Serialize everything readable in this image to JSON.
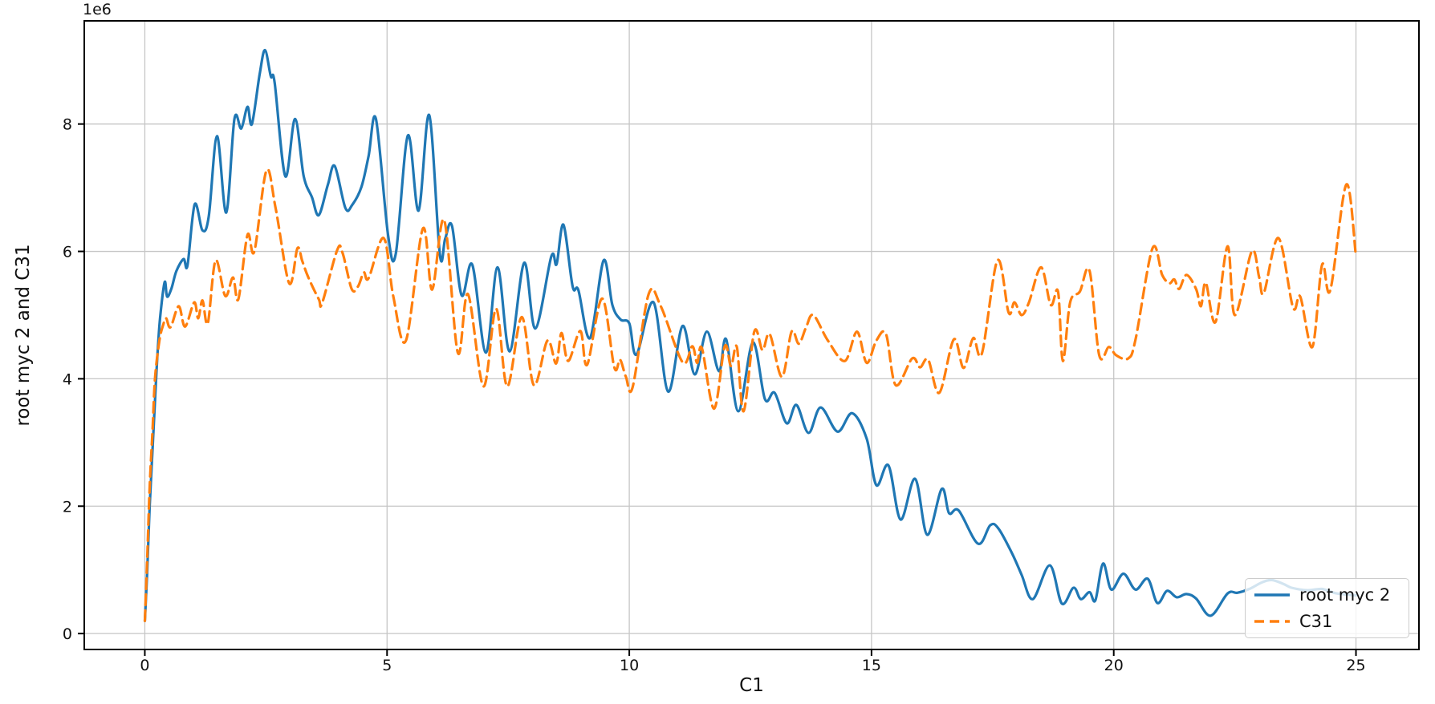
{
  "figure": {
    "background_color": "#ffffff",
    "text_color": "#111111",
    "spine_color": "#000000",
    "grid_color": "#c6c6c6"
  },
  "x_axis": {
    "label": "C1",
    "tick_labels": [
      "0",
      "5",
      "10",
      "15",
      "20",
      "25"
    ]
  },
  "y_axis": {
    "label": "root myc 2 and C31",
    "offset_text": "1e6",
    "tick_labels": [
      "0",
      "2",
      "4",
      "6",
      "8"
    ]
  },
  "legend": {
    "entries": [
      {
        "label": "root myc 2",
        "line_style": "solid",
        "color": "#1f77b4",
        "sample_icon": "solid-line-icon"
      },
      {
        "label": "C31",
        "line_style": "dashed",
        "color": "#ff7f0e",
        "sample_icon": "dashed-line-icon"
      }
    ]
  },
  "chart_data": {
    "type": "line",
    "title": "",
    "xlabel": "C1",
    "ylabel": "root myc 2 and C31",
    "y_offset_text": "1e6",
    "y_unit": "1e6 (values below are in millions)",
    "xlim": [
      -1.25,
      26.3
    ],
    "ylim_millions": [
      -0.25,
      9.62
    ],
    "x_ticks": [
      0,
      5,
      10,
      15,
      20,
      25
    ],
    "y_ticks_millions": [
      0,
      2,
      4,
      6,
      8
    ],
    "grid": true,
    "legend_position": "lower right",
    "grid_color": "#c6c6c6",
    "series": [
      {
        "name": "root myc 2",
        "color": "#1f77b4",
        "style": "solid",
        "points": [
          [
            0,
            0.2
          ],
          [
            0.05,
            1.0
          ],
          [
            0.1,
            2.0
          ],
          [
            0.16,
            2.9
          ],
          [
            0.22,
            3.8
          ],
          [
            0.27,
            4.5
          ],
          [
            0.32,
            5.0
          ],
          [
            0.41,
            5.52
          ],
          [
            0.46,
            5.29
          ],
          [
            0.55,
            5.42
          ],
          [
            0.65,
            5.69
          ],
          [
            0.8,
            5.88
          ],
          [
            0.88,
            5.78
          ],
          [
            1.03,
            6.74
          ],
          [
            1.19,
            6.33
          ],
          [
            1.32,
            6.55
          ],
          [
            1.49,
            7.81
          ],
          [
            1.68,
            6.61
          ],
          [
            1.85,
            8.08
          ],
          [
            1.99,
            7.93
          ],
          [
            2.12,
            8.27
          ],
          [
            2.21,
            8.0
          ],
          [
            2.37,
            8.78
          ],
          [
            2.48,
            9.16
          ],
          [
            2.6,
            8.75
          ],
          [
            2.68,
            8.65
          ],
          [
            2.9,
            7.18
          ],
          [
            3.1,
            8.08
          ],
          [
            3.28,
            7.18
          ],
          [
            3.45,
            6.85
          ],
          [
            3.59,
            6.57
          ],
          [
            3.78,
            7.05
          ],
          [
            3.92,
            7.34
          ],
          [
            4.14,
            6.68
          ],
          [
            4.28,
            6.73
          ],
          [
            4.47,
            7.01
          ],
          [
            4.62,
            7.5
          ],
          [
            4.77,
            8.08
          ],
          [
            5.02,
            6.26
          ],
          [
            5.18,
            5.96
          ],
          [
            5.43,
            7.82
          ],
          [
            5.65,
            6.64
          ],
          [
            5.87,
            8.14
          ],
          [
            6.09,
            5.95
          ],
          [
            6.2,
            6.2
          ],
          [
            6.34,
            6.4
          ],
          [
            6.54,
            5.31
          ],
          [
            6.76,
            5.79
          ],
          [
            7.04,
            4.41
          ],
          [
            7.28,
            5.75
          ],
          [
            7.53,
            4.43
          ],
          [
            7.83,
            5.82
          ],
          [
            8.06,
            4.79
          ],
          [
            8.39,
            5.92
          ],
          [
            8.5,
            5.8
          ],
          [
            8.64,
            6.42
          ],
          [
            8.83,
            5.45
          ],
          [
            8.95,
            5.39
          ],
          [
            9.19,
            4.64
          ],
          [
            9.47,
            5.86
          ],
          [
            9.65,
            5.16
          ],
          [
            9.82,
            4.93
          ],
          [
            10.0,
            4.87
          ],
          [
            10.15,
            4.38
          ],
          [
            10.5,
            5.2
          ],
          [
            10.8,
            3.8
          ],
          [
            11.1,
            4.83
          ],
          [
            11.35,
            4.07
          ],
          [
            11.6,
            4.74
          ],
          [
            11.85,
            4.12
          ],
          [
            12.0,
            4.62
          ],
          [
            12.25,
            3.49
          ],
          [
            12.55,
            4.57
          ],
          [
            12.8,
            3.68
          ],
          [
            13.0,
            3.78
          ],
          [
            13.25,
            3.3
          ],
          [
            13.45,
            3.59
          ],
          [
            13.7,
            3.15
          ],
          [
            13.95,
            3.55
          ],
          [
            14.3,
            3.17
          ],
          [
            14.6,
            3.46
          ],
          [
            14.9,
            3.06
          ],
          [
            15.1,
            2.33
          ],
          [
            15.35,
            2.64
          ],
          [
            15.6,
            1.79
          ],
          [
            15.9,
            2.43
          ],
          [
            16.15,
            1.55
          ],
          [
            16.45,
            2.27
          ],
          [
            16.6,
            1.89
          ],
          [
            16.8,
            1.93
          ],
          [
            17.2,
            1.41
          ],
          [
            17.45,
            1.7
          ],
          [
            17.62,
            1.65
          ],
          [
            17.9,
            1.26
          ],
          [
            18.1,
            0.92
          ],
          [
            18.33,
            0.54
          ],
          [
            18.68,
            1.07
          ],
          [
            18.93,
            0.47
          ],
          [
            19.17,
            0.72
          ],
          [
            19.32,
            0.54
          ],
          [
            19.5,
            0.65
          ],
          [
            19.62,
            0.52
          ],
          [
            19.78,
            1.1
          ],
          [
            19.95,
            0.69
          ],
          [
            20.2,
            0.94
          ],
          [
            20.45,
            0.69
          ],
          [
            20.7,
            0.86
          ],
          [
            20.9,
            0.48
          ],
          [
            21.1,
            0.67
          ],
          [
            21.3,
            0.57
          ],
          [
            21.5,
            0.62
          ],
          [
            21.7,
            0.55
          ],
          [
            22.0,
            0.28
          ],
          [
            22.35,
            0.63
          ],
          [
            22.55,
            0.64
          ],
          [
            22.8,
            0.7
          ],
          [
            23.05,
            0.8
          ],
          [
            23.26,
            0.84
          ],
          [
            23.5,
            0.78
          ],
          [
            23.67,
            0.72
          ],
          [
            24.0,
            0.68
          ],
          [
            24.3,
            0.7
          ],
          [
            24.6,
            0.63
          ],
          [
            25.0,
            0.6
          ]
        ]
      },
      {
        "name": "C31",
        "color": "#ff7f0e",
        "style": "dashed",
        "points": [
          [
            0,
            0.2
          ],
          [
            0.05,
            1.2
          ],
          [
            0.1,
            2.3
          ],
          [
            0.16,
            3.2
          ],
          [
            0.21,
            4.0
          ],
          [
            0.3,
            4.6
          ],
          [
            0.38,
            4.85
          ],
          [
            0.44,
            4.95
          ],
          [
            0.53,
            4.81
          ],
          [
            0.7,
            5.14
          ],
          [
            0.83,
            4.82
          ],
          [
            1.02,
            5.2
          ],
          [
            1.1,
            4.95
          ],
          [
            1.19,
            5.23
          ],
          [
            1.3,
            4.87
          ],
          [
            1.46,
            5.86
          ],
          [
            1.66,
            5.3
          ],
          [
            1.82,
            5.59
          ],
          [
            1.93,
            5.25
          ],
          [
            2.12,
            6.26
          ],
          [
            2.26,
            6.0
          ],
          [
            2.51,
            7.27
          ],
          [
            2.7,
            6.68
          ],
          [
            2.98,
            5.5
          ],
          [
            3.15,
            6.05
          ],
          [
            3.25,
            5.85
          ],
          [
            3.37,
            5.6
          ],
          [
            3.59,
            5.25
          ],
          [
            3.66,
            5.19
          ],
          [
            3.97,
            6.02
          ],
          [
            4.08,
            5.98
          ],
          [
            4.27,
            5.41
          ],
          [
            4.4,
            5.45
          ],
          [
            4.52,
            5.67
          ],
          [
            4.62,
            5.58
          ],
          [
            4.93,
            6.21
          ],
          [
            5.13,
            5.29
          ],
          [
            5.39,
            4.6
          ],
          [
            5.74,
            6.36
          ],
          [
            5.93,
            5.4
          ],
          [
            6.18,
            6.49
          ],
          [
            6.46,
            4.41
          ],
          [
            6.67,
            5.33
          ],
          [
            6.99,
            3.88
          ],
          [
            7.25,
            5.1
          ],
          [
            7.48,
            3.88
          ],
          [
            7.78,
            4.97
          ],
          [
            8.03,
            3.9
          ],
          [
            8.31,
            4.6
          ],
          [
            8.49,
            4.24
          ],
          [
            8.6,
            4.72
          ],
          [
            8.74,
            4.28
          ],
          [
            8.99,
            4.75
          ],
          [
            9.13,
            4.22
          ],
          [
            9.44,
            5.26
          ],
          [
            9.69,
            4.18
          ],
          [
            9.81,
            4.3
          ],
          [
            9.93,
            4.03
          ],
          [
            10.07,
            3.87
          ],
          [
            10.4,
            5.33
          ],
          [
            10.65,
            5.14
          ],
          [
            11.1,
            4.26
          ],
          [
            11.3,
            4.51
          ],
          [
            11.4,
            4.25
          ],
          [
            11.5,
            4.48
          ],
          [
            11.75,
            3.53
          ],
          [
            11.97,
            4.51
          ],
          [
            12.1,
            4.2
          ],
          [
            12.22,
            4.5
          ],
          [
            12.36,
            3.49
          ],
          [
            12.58,
            4.74
          ],
          [
            12.75,
            4.45
          ],
          [
            12.9,
            4.7
          ],
          [
            13.15,
            4.03
          ],
          [
            13.35,
            4.74
          ],
          [
            13.5,
            4.55
          ],
          [
            13.65,
            4.81
          ],
          [
            13.8,
            5.0
          ],
          [
            14.1,
            4.6
          ],
          [
            14.45,
            4.28
          ],
          [
            14.7,
            4.74
          ],
          [
            14.9,
            4.25
          ],
          [
            15.1,
            4.6
          ],
          [
            15.3,
            4.7
          ],
          [
            15.5,
            3.9
          ],
          [
            15.84,
            4.32
          ],
          [
            16.0,
            4.18
          ],
          [
            16.17,
            4.3
          ],
          [
            16.4,
            3.78
          ],
          [
            16.7,
            4.62
          ],
          [
            16.9,
            4.17
          ],
          [
            17.1,
            4.64
          ],
          [
            17.28,
            4.4
          ],
          [
            17.6,
            5.86
          ],
          [
            17.83,
            5.04
          ],
          [
            17.95,
            5.2
          ],
          [
            18.1,
            5.0
          ],
          [
            18.25,
            5.2
          ],
          [
            18.5,
            5.75
          ],
          [
            18.7,
            5.16
          ],
          [
            18.85,
            5.37
          ],
          [
            18.95,
            4.28
          ],
          [
            19.1,
            5.2
          ],
          [
            19.3,
            5.37
          ],
          [
            19.5,
            5.7
          ],
          [
            19.7,
            4.37
          ],
          [
            19.9,
            4.5
          ],
          [
            20.05,
            4.37
          ],
          [
            20.3,
            4.32
          ],
          [
            20.45,
            4.62
          ],
          [
            20.8,
            6.05
          ],
          [
            21.0,
            5.63
          ],
          [
            21.15,
            5.5
          ],
          [
            21.25,
            5.56
          ],
          [
            21.35,
            5.41
          ],
          [
            21.5,
            5.63
          ],
          [
            21.7,
            5.41
          ],
          [
            21.8,
            5.14
          ],
          [
            21.9,
            5.51
          ],
          [
            22.1,
            4.89
          ],
          [
            22.35,
            6.08
          ],
          [
            22.5,
            5.0
          ],
          [
            22.85,
            6.0
          ],
          [
            23.0,
            5.6
          ],
          [
            23.1,
            5.35
          ],
          [
            23.4,
            6.21
          ],
          [
            23.7,
            5.12
          ],
          [
            23.85,
            5.29
          ],
          [
            24.1,
            4.5
          ],
          [
            24.3,
            5.79
          ],
          [
            24.47,
            5.39
          ],
          [
            24.8,
            7.05
          ],
          [
            25.0,
            5.92
          ]
        ]
      }
    ]
  }
}
